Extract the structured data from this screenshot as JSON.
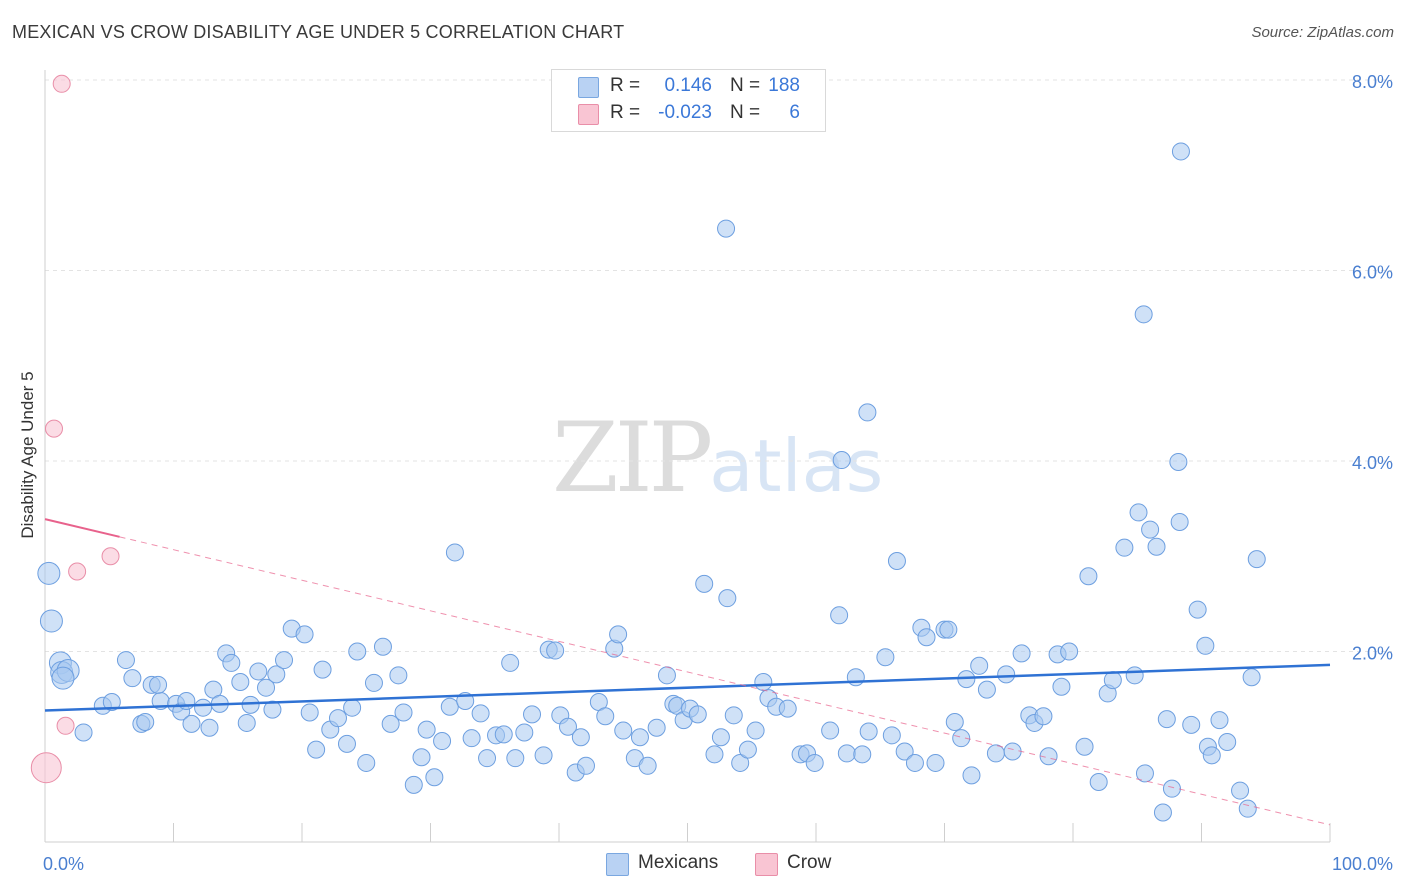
{
  "title": "MEXICAN VS CROW DISABILITY AGE UNDER 5 CORRELATION CHART",
  "source": "Source: ZipAtlas.com",
  "watermark": {
    "part1": "ZIP",
    "part2": "atlas"
  },
  "legend": {
    "rows": [
      {
        "r_label": "R =",
        "r_value": "0.146",
        "n_label": "N =",
        "n_value": "188",
        "color": "#b9d2f3",
        "border": "#7aa7e0"
      },
      {
        "r_label": "R =",
        "r_value": "-0.023",
        "n_label": "N =",
        "n_value": "6",
        "color": "#f9c5d3",
        "border": "#e98ea8"
      }
    ]
  },
  "chart_data": {
    "type": "scatter",
    "xlabel": "",
    "ylabel": "Disability Age Under 5",
    "xlim": [
      0,
      100
    ],
    "ylim": [
      0,
      8.0
    ],
    "x_tick_labels": [
      "0.0%",
      "100.0%"
    ],
    "y_tick_labels": [
      "2.0%",
      "4.0%",
      "6.0%",
      "8.0%"
    ],
    "y_tick_values": [
      2.0,
      4.0,
      6.0,
      8.0
    ],
    "grid": true,
    "series": [
      {
        "name": "Mexicans",
        "color": "#a8c8f0",
        "stroke": "#6d9fe0",
        "trend": {
          "x1": 0,
          "y1": 1.38,
          "x2": 100,
          "y2": 1.86,
          "color": "#2f72d4"
        },
        "points": [
          [
            0.3,
            2.82
          ],
          [
            0.5,
            2.32
          ],
          [
            1.2,
            1.88
          ],
          [
            1.3,
            1.78
          ],
          [
            1.8,
            1.8
          ],
          [
            3.0,
            1.15
          ],
          [
            1.4,
            1.72
          ],
          [
            4.5,
            1.43
          ],
          [
            5.2,
            1.47
          ],
          [
            6.3,
            1.91
          ],
          [
            6.8,
            1.72
          ],
          [
            7.5,
            1.24
          ],
          [
            7.8,
            1.26
          ],
          [
            8.3,
            1.65
          ],
          [
            9.0,
            1.48
          ],
          [
            8.8,
            1.65
          ],
          [
            10.2,
            1.45
          ],
          [
            10.6,
            1.37
          ],
          [
            11.0,
            1.48
          ],
          [
            11.4,
            1.24
          ],
          [
            12.3,
            1.41
          ],
          [
            12.8,
            1.2
          ],
          [
            13.1,
            1.6
          ],
          [
            13.6,
            1.45
          ],
          [
            14.1,
            1.98
          ],
          [
            14.5,
            1.88
          ],
          [
            15.2,
            1.68
          ],
          [
            15.7,
            1.25
          ],
          [
            16.0,
            1.44
          ],
          [
            16.6,
            1.79
          ],
          [
            17.2,
            1.62
          ],
          [
            17.7,
            1.39
          ],
          [
            18.0,
            1.76
          ],
          [
            18.6,
            1.91
          ],
          [
            19.2,
            2.24
          ],
          [
            20.2,
            2.18
          ],
          [
            20.6,
            1.36
          ],
          [
            21.1,
            0.97
          ],
          [
            21.6,
            1.81
          ],
          [
            22.2,
            1.18
          ],
          [
            22.8,
            1.3
          ],
          [
            23.5,
            1.03
          ],
          [
            23.9,
            1.41
          ],
          [
            24.3,
            2.0
          ],
          [
            25.0,
            0.83
          ],
          [
            25.6,
            1.67
          ],
          [
            26.3,
            2.05
          ],
          [
            26.9,
            1.24
          ],
          [
            27.5,
            1.75
          ],
          [
            27.9,
            1.36
          ],
          [
            28.7,
            0.6
          ],
          [
            29.3,
            0.89
          ],
          [
            29.7,
            1.18
          ],
          [
            30.3,
            0.68
          ],
          [
            30.9,
            1.06
          ],
          [
            31.5,
            1.42
          ],
          [
            31.9,
            3.04
          ],
          [
            32.7,
            1.48
          ],
          [
            33.2,
            1.09
          ],
          [
            33.9,
            1.35
          ],
          [
            34.4,
            0.88
          ],
          [
            35.1,
            1.12
          ],
          [
            35.7,
            1.13
          ],
          [
            36.2,
            1.88
          ],
          [
            36.6,
            0.88
          ],
          [
            37.3,
            1.15
          ],
          [
            37.9,
            1.34
          ],
          [
            38.8,
            0.91
          ],
          [
            39.2,
            2.02
          ],
          [
            39.7,
            2.01
          ],
          [
            40.1,
            1.33
          ],
          [
            40.7,
            1.21
          ],
          [
            41.3,
            0.73
          ],
          [
            41.7,
            1.1
          ],
          [
            42.1,
            0.8
          ],
          [
            43.1,
            1.47
          ],
          [
            43.6,
            1.32
          ],
          [
            44.3,
            2.03
          ],
          [
            44.6,
            2.18
          ],
          [
            45.0,
            1.17
          ],
          [
            45.9,
            0.88
          ],
          [
            46.3,
            1.1
          ],
          [
            46.9,
            0.8
          ],
          [
            47.6,
            1.2
          ],
          [
            48.4,
            1.75
          ],
          [
            48.9,
            1.45
          ],
          [
            49.2,
            1.43
          ],
          [
            49.7,
            1.28
          ],
          [
            50.2,
            1.4
          ],
          [
            50.8,
            1.34
          ],
          [
            51.3,
            2.71
          ],
          [
            52.1,
            0.92
          ],
          [
            52.6,
            1.1
          ],
          [
            53.1,
            2.56
          ],
          [
            53.6,
            1.33
          ],
          [
            54.1,
            0.83
          ],
          [
            54.7,
            0.97
          ],
          [
            55.3,
            1.17
          ],
          [
            55.9,
            1.68
          ],
          [
            56.3,
            1.51
          ],
          [
            56.9,
            1.42
          ],
          [
            57.8,
            1.4
          ],
          [
            58.8,
            0.92
          ],
          [
            59.3,
            0.93
          ],
          [
            59.9,
            0.83
          ],
          [
            61.1,
            1.17
          ],
          [
            61.8,
            2.38
          ],
          [
            62.4,
            0.93
          ],
          [
            63.1,
            1.73
          ],
          [
            63.6,
            0.92
          ],
          [
            64.1,
            1.16
          ],
          [
            65.4,
            1.94
          ],
          [
            65.9,
            1.12
          ],
          [
            66.3,
            2.95
          ],
          [
            66.9,
            0.95
          ],
          [
            67.7,
            0.83
          ],
          [
            68.2,
            2.25
          ],
          [
            68.6,
            2.15
          ],
          [
            69.3,
            0.83
          ],
          [
            70.0,
            2.23
          ],
          [
            70.3,
            2.23
          ],
          [
            70.8,
            1.26
          ],
          [
            71.3,
            1.09
          ],
          [
            71.7,
            1.71
          ],
          [
            72.1,
            0.7
          ],
          [
            72.7,
            1.85
          ],
          [
            73.3,
            1.6
          ],
          [
            74.0,
            0.93
          ],
          [
            74.8,
            1.76
          ],
          [
            75.3,
            0.95
          ],
          [
            76.0,
            1.98
          ],
          [
            76.6,
            1.33
          ],
          [
            77.0,
            1.25
          ],
          [
            77.7,
            1.32
          ],
          [
            78.1,
            0.9
          ],
          [
            78.8,
            1.97
          ],
          [
            79.1,
            1.63
          ],
          [
            79.7,
            2.0
          ],
          [
            80.9,
            1.0
          ],
          [
            81.2,
            2.79
          ],
          [
            82.0,
            0.63
          ],
          [
            82.7,
            1.56
          ],
          [
            83.1,
            1.7
          ],
          [
            84.0,
            3.09
          ],
          [
            84.8,
            1.75
          ],
          [
            85.1,
            3.46
          ],
          [
            85.6,
            0.72
          ],
          [
            86.5,
            3.1
          ],
          [
            87.0,
            0.31
          ],
          [
            87.3,
            1.29
          ],
          [
            87.7,
            0.56
          ],
          [
            88.3,
            3.36
          ],
          [
            89.2,
            1.23
          ],
          [
            89.7,
            2.44
          ],
          [
            90.3,
            2.06
          ],
          [
            90.5,
            1.0
          ],
          [
            90.8,
            0.91
          ],
          [
            91.4,
            1.28
          ],
          [
            92.0,
            1.05
          ],
          [
            93.0,
            0.54
          ],
          [
            93.6,
            0.35
          ],
          [
            93.9,
            1.73
          ]
        ],
        "outliers": [
          [
            53.0,
            6.44
          ],
          [
            64.0,
            4.51
          ],
          [
            62.0,
            4.01
          ],
          [
            88.4,
            7.25
          ],
          [
            85.5,
            5.54
          ],
          [
            88.2,
            3.99
          ],
          [
            86.0,
            3.28
          ],
          [
            94.3,
            2.97
          ]
        ]
      },
      {
        "name": "Crow",
        "color": "#f9c5d3",
        "stroke": "#e98ea8",
        "trend": {
          "x1": 0,
          "y1": 3.39,
          "x2": 100,
          "y2": 0.18,
          "solid_until": 5.8,
          "color": "#e8628c"
        },
        "points": [
          [
            1.3,
            7.96
          ],
          [
            0.7,
            4.34
          ],
          [
            2.5,
            2.84
          ],
          [
            5.1,
            3.0
          ],
          [
            1.6,
            1.22
          ],
          [
            0.1,
            0.78
          ]
        ]
      }
    ]
  },
  "bottom_legend": [
    {
      "label": "Mexicans",
      "color": "#b9d2f3",
      "border": "#7aa7e0"
    },
    {
      "label": "Crow",
      "color": "#f9c5d3",
      "border": "#e98ea8"
    }
  ]
}
